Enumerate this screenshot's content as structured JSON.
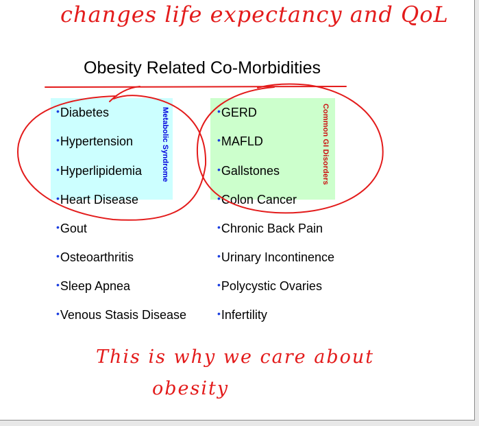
{
  "annotations": {
    "top": "changes life expectancy and QoL",
    "bottom_line1": "This is why we care about",
    "bottom_line2": "obesity"
  },
  "slide": {
    "title": "Obesity Related Co-Morbidities",
    "bullet": "•",
    "metabolic_label": "Metabolic Syndrome",
    "gi_label": "Common GI Disorders",
    "left_items": [
      "Diabetes",
      "Hypertension",
      "Hyperlipidemia",
      "Heart Disease",
      "Gout",
      "Osteoarthritis",
      "Sleep Apnea",
      "Venous Stasis Disease"
    ],
    "right_items": [
      "GERD",
      "MAFLD",
      "Gallstones",
      "Colon Cancer",
      "Chronic Back Pain",
      "Urinary Incontinence",
      "Polycystic Ovaries",
      "Infertility"
    ]
  },
  "colors": {
    "ink": "#e31b1b",
    "metabolic_box": "#ccffff",
    "gi_box": "#ccffcc",
    "metabolic_text": "#0000dd",
    "gi_text": "#cc1111",
    "bullet": "#1a3de0"
  }
}
